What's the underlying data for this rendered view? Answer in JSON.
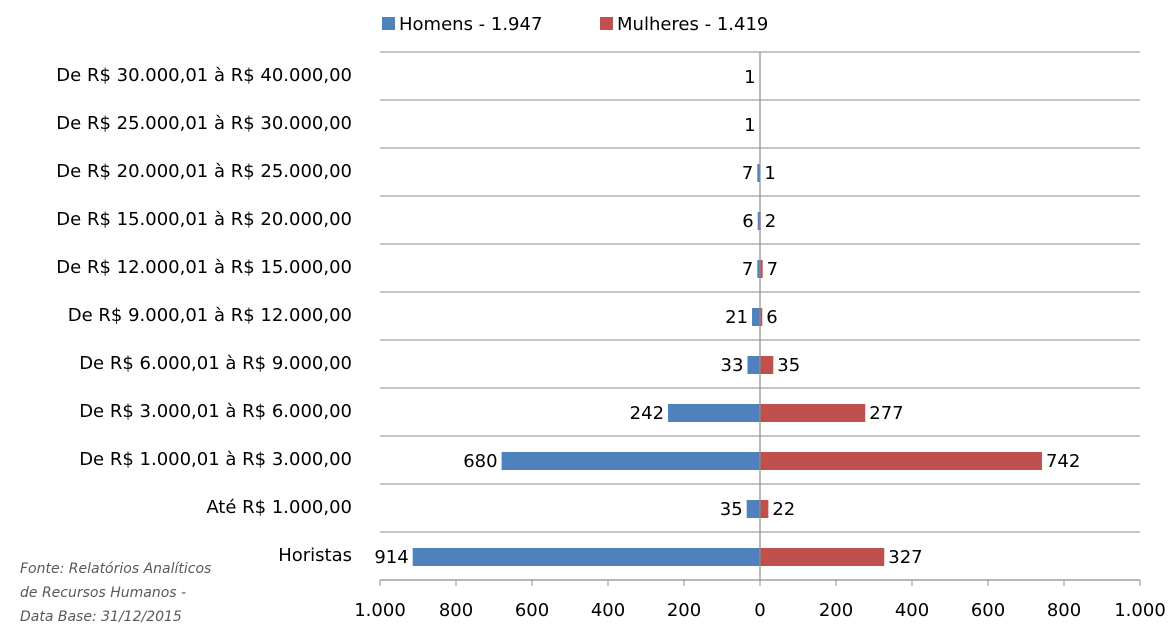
{
  "chart_data": {
    "type": "butterfly-bar",
    "categories": [
      "De R$ 30.000,01 à R$ 40.000,00",
      "De R$ 25.000,01 à R$ 30.000,00",
      "De R$ 20.000,01 à R$ 25.000,00",
      "De R$ 15.000,01 à R$ 20.000,00",
      "De R$ 12.000,01 à R$ 15.000,00",
      "De R$ 9.000,01 à R$ 12.000,00",
      "De R$ 6.000,01 à R$ 9.000,00",
      "De R$ 3.000,01 à R$ 6.000,00",
      "De R$ 1.000,01 à R$ 3.000,00",
      "Até R$ 1.000,00",
      "Horistas"
    ],
    "series": [
      {
        "name": "Homens - 1.947",
        "color": "#4f81bd",
        "values": [
          -1,
          -1,
          -7,
          -6,
          -7,
          -21,
          -33,
          -242,
          -680,
          -35,
          -914
        ],
        "value_labels": [
          "1",
          "1",
          "7",
          "6",
          "7",
          "21",
          "33",
          "242",
          "680",
          "35",
          "914"
        ]
      },
      {
        "name": "Mulheres - 1.419",
        "color": "#c0504d",
        "values": [
          null,
          null,
          1,
          2,
          7,
          6,
          35,
          277,
          742,
          22,
          327
        ]
      }
    ],
    "xlim": [
      -1000,
      1000
    ],
    "xticks": [
      {
        "value": -1000,
        "label": "1.000"
      },
      {
        "value": -800,
        "label": "800"
      },
      {
        "value": -600,
        "label": "600"
      },
      {
        "value": -400,
        "label": "400"
      },
      {
        "value": -200,
        "label": "200"
      },
      0,
      200,
      400,
      600,
      800,
      {
        "value": 1000,
        "label": "1.000"
      }
    ],
    "legend": "top",
    "note": [
      "Fonte: Relatórios Analíticos",
      "de Recursos Humanos -",
      "Data Base: 31/12/2015"
    ]
  }
}
